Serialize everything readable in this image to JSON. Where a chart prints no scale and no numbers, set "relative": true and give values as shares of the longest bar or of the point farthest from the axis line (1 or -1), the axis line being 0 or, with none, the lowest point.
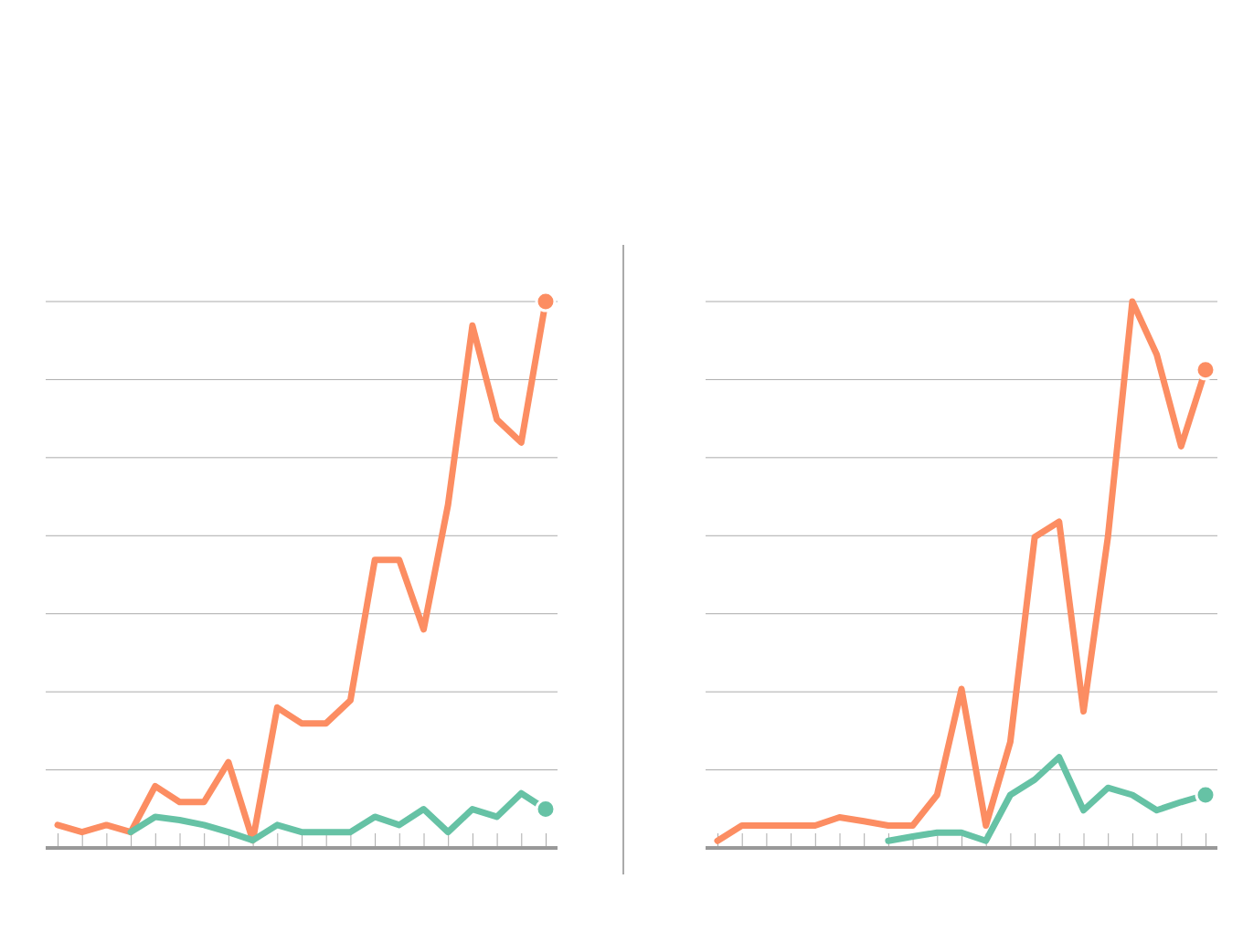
{
  "chart_data": [
    {
      "type": "line",
      "relative": true,
      "grid": true,
      "categories": [
        null,
        null,
        null,
        null,
        null,
        null,
        null,
        null,
        null,
        null,
        null,
        null,
        null,
        null,
        null,
        null,
        null,
        null,
        null,
        null,
        null
      ],
      "series": [
        {
          "color": "#fc8d62",
          "values": [
            0.042,
            0.029,
            0.042,
            0.029,
            0.113,
            0.084,
            0.084,
            0.157,
            0.014,
            0.257,
            0.228,
            0.228,
            0.27,
            0.527,
            0.527,
            0.4,
            0.628,
            0.956,
            0.784,
            0.742,
            1
          ]
        },
        {
          "color": "#66c2a5",
          "values": [
            null,
            null,
            null,
            0.029,
            0.057,
            0.051,
            0.042,
            0.029,
            0.014,
            0.042,
            0.029,
            0.029,
            0.029,
            0.057,
            0.042,
            0.071,
            0.029,
            0.071,
            0.057,
            0.1,
            0.071
          ]
        }
      ]
    },
    {
      "type": "line",
      "relative": true,
      "grid": true,
      "categories": [
        null,
        null,
        null,
        null,
        null,
        null,
        null,
        null,
        null,
        null,
        null,
        null,
        null,
        null,
        null,
        null,
        null,
        null,
        null,
        null,
        null
      ],
      "series": [
        {
          "color": "#fc8d62",
          "values": [
            0.013,
            0.041,
            0.041,
            0.041,
            0.041,
            0.056,
            0.049,
            0.041,
            0.041,
            0.097,
            0.291,
            0.041,
            0.194,
            0.569,
            0.597,
            0.25,
            0.569,
            1,
            0.903,
            0.735,
            0.875
          ]
        },
        {
          "color": "#66c2a5",
          "values": [
            null,
            null,
            null,
            null,
            null,
            null,
            null,
            0.013,
            0.021,
            0.028,
            0.028,
            0.013,
            0.097,
            0.125,
            0.166,
            0.069,
            0.11,
            0.097,
            0.069,
            0.084,
            0.097
          ]
        }
      ]
    }
  ]
}
